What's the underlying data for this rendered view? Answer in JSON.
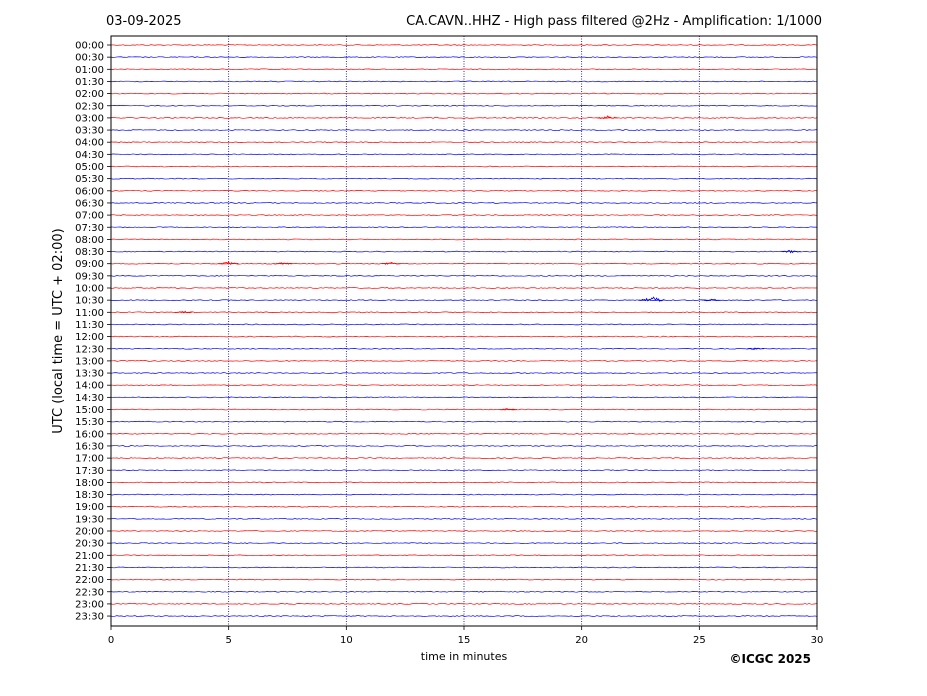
{
  "header": {
    "date": "03-09-2025",
    "title": "CA.CAVN..HHZ - High pass filtered @2Hz - Amplification: 1/1000"
  },
  "copyright": "©ICGC 2025",
  "colors": {
    "odd_trace": "#ff0000",
    "even_trace": "#0000ff",
    "grid": "#00008b",
    "axis": "#000000"
  },
  "chart_data": {
    "type": "line",
    "subtype": "helicorder",
    "xlabel": "time in minutes",
    "ylabel": "UTC (local time = UTC + 02:00)",
    "xlim": [
      0,
      30
    ],
    "xticks": [
      "0",
      "5",
      "10",
      "15",
      "20",
      "25",
      "30"
    ],
    "grid": "vertical dotted lines at 5, 10, 15, 20, 25",
    "rows": [
      "00:00",
      "00:30",
      "01:00",
      "01:30",
      "02:00",
      "02:30",
      "03:00",
      "03:30",
      "04:00",
      "04:30",
      "05:00",
      "05:30",
      "06:00",
      "06:30",
      "07:00",
      "07:30",
      "08:00",
      "08:30",
      "09:00",
      "09:30",
      "10:00",
      "10:30",
      "11:00",
      "11:30",
      "12:00",
      "12:30",
      "13:00",
      "13:30",
      "14:00",
      "14:30",
      "15:00",
      "15:30",
      "16:00",
      "16:30",
      "17:00",
      "17:30",
      "18:00",
      "18:30",
      "19:00",
      "19:30",
      "20:00",
      "20:30",
      "21:00",
      "21:30",
      "22:00",
      "22:30",
      "23:00",
      "23:30"
    ],
    "trace_colors": [
      "red",
      "blue"
    ],
    "events": [
      {
        "row": "03:00",
        "minute": 21.1,
        "amplitude": 0.35
      },
      {
        "row": "09:00",
        "minute": 5.0,
        "amplitude": 0.3
      },
      {
        "row": "09:00",
        "minute": 7.3,
        "amplitude": 0.25
      },
      {
        "row": "09:00",
        "minute": 11.9,
        "amplitude": 0.25
      },
      {
        "row": "10:30",
        "minute": 23.0,
        "amplitude": 0.55
      },
      {
        "row": "10:30",
        "minute": 25.5,
        "amplitude": 0.25
      },
      {
        "row": "08:30",
        "minute": 28.9,
        "amplitude": 0.25
      },
      {
        "row": "12:30",
        "minute": 27.4,
        "amplitude": 0.2
      },
      {
        "row": "15:00",
        "minute": 16.9,
        "amplitude": 0.2
      },
      {
        "row": "11:00",
        "minute": 3.1,
        "amplitude": 0.2
      }
    ]
  }
}
